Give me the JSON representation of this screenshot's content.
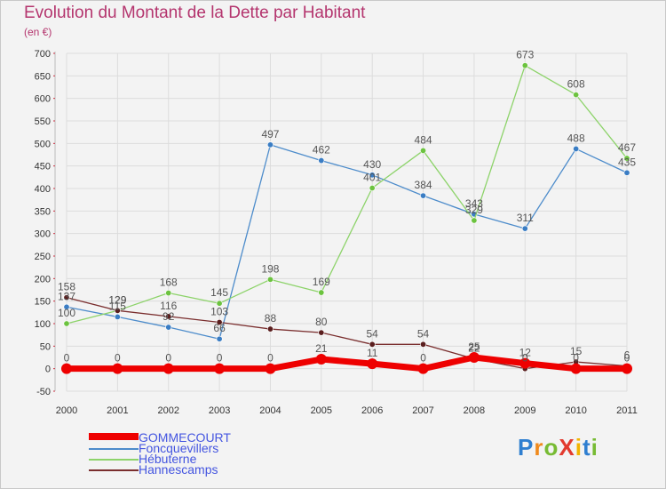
{
  "header": {
    "title": "Evolution du Montant de la Dette par Habitant",
    "subtitle": "(en €)"
  },
  "colors": {
    "background": "#f3f3f3",
    "grid": "#dcdcdc",
    "axis_text": "#333333",
    "title": "#b4356e"
  },
  "logo": {
    "text": "ProXiti",
    "letters": [
      {
        "ch": "P",
        "color": "#2f7fd0"
      },
      {
        "ch": "r",
        "color": "#f08a1c"
      },
      {
        "ch": "o",
        "color": "#77bb33"
      },
      {
        "ch": "X",
        "color": "#e23a2e"
      },
      {
        "ch": "i",
        "color": "#f2b400"
      },
      {
        "ch": "t",
        "color": "#2f7fd0"
      },
      {
        "ch": "i",
        "color": "#77bb33"
      }
    ]
  },
  "chart_data": {
    "type": "line",
    "title": "Evolution du Montant de la Dette par Habitant",
    "subtitle": "(en €)",
    "x": [
      "2000",
      "2001",
      "2002",
      "2003",
      "2004",
      "2005",
      "2006",
      "2007",
      "2008",
      "2009",
      "2010",
      "2011"
    ],
    "ylim": [
      -50,
      700
    ],
    "yticks": [
      -50,
      0,
      50,
      100,
      150,
      200,
      250,
      300,
      350,
      400,
      450,
      500,
      550,
      600,
      650,
      700
    ],
    "grid": true,
    "legend_position": "bottom-left",
    "series": [
      {
        "name": "Foncquevillers",
        "color": "#4d8ccb",
        "marker": "#3a7dc4",
        "values": [
          137,
          115,
          92,
          66,
          497,
          462,
          430,
          384,
          343,
          311,
          488,
          435
        ],
        "labels": [
          "137",
          "115",
          "92",
          "66",
          "497",
          "462",
          "430",
          "384",
          "343",
          "311",
          "488",
          "435"
        ]
      },
      {
        "name": "Hébuterne",
        "color": "#8dd36a",
        "marker": "#6cc33f",
        "values": [
          100,
          129,
          168,
          145,
          198,
          169,
          401,
          484,
          329,
          673,
          608,
          467
        ],
        "labels": [
          "100",
          "129",
          "168",
          "145",
          "198",
          "169",
          "401",
          "484",
          "329",
          "673",
          "608",
          "467"
        ]
      },
      {
        "name": "Hannescamps",
        "color": "#7a2e2e",
        "marker": "#5a1e1e",
        "values": [
          158,
          129,
          116,
          103,
          88,
          80,
          54,
          54,
          22,
          0,
          15,
          6
        ],
        "labels": [
          "158",
          "129",
          "116",
          "103",
          "88",
          "80",
          "54",
          "54",
          "22",
          "0",
          "15",
          "6"
        ]
      },
      {
        "name": "GOMMECOURT",
        "color": "#ee0000",
        "marker": "#ee0000",
        "values": [
          0,
          0,
          0,
          0,
          0,
          21,
          11,
          0,
          25,
          12,
          0,
          0
        ],
        "labels": [
          "0",
          "0",
          "0",
          "0",
          "0",
          "21",
          "11",
          "0",
          "25",
          "12",
          "0",
          "0"
        ]
      }
    ],
    "legend": [
      "GOMMECOURT",
      "Foncquevillers",
      "Hébuterne",
      "Hannescamps"
    ]
  }
}
